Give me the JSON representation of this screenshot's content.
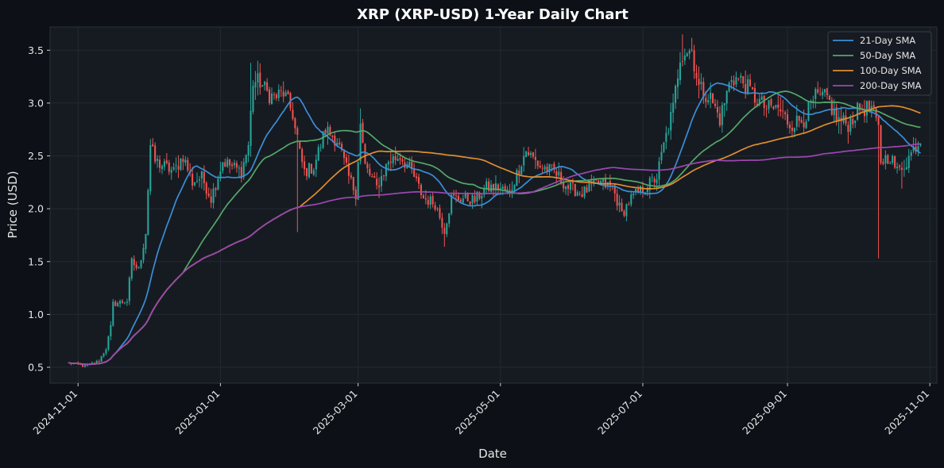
{
  "chart_data": {
    "type": "candlestick",
    "title": "XRP (XRP-USD) 1-Year Daily Chart",
    "xlabel": "Date",
    "ylabel": "Price (USD)",
    "x_range": [
      "2024-10-20",
      "2025-11-04"
    ],
    "ylim": [
      0.35,
      3.72
    ],
    "x_ticks": [
      "2024-11-01",
      "2025-01-01",
      "2025-03-01",
      "2025-05-01",
      "2025-07-01",
      "2025-09-01",
      "2025-11-01"
    ],
    "y_ticks": [
      0.5,
      1.0,
      1.5,
      2.0,
      2.5,
      3.0,
      3.5
    ],
    "grid": true,
    "legend_position": "top-right",
    "colors": {
      "up": "#26a69a",
      "down": "#ef5350",
      "background": "#161b22",
      "page": "#0d1117"
    },
    "price_anchors": [
      [
        "2024-10-28",
        0.54
      ],
      [
        "2024-11-04",
        0.51
      ],
      [
        "2024-11-10",
        0.56
      ],
      [
        "2024-11-13",
        0.68
      ],
      [
        "2024-11-15",
        0.88
      ],
      [
        "2024-11-16",
        1.1
      ],
      [
        "2024-11-22",
        1.13
      ],
      [
        "2024-11-24",
        1.5
      ],
      [
        "2024-11-27",
        1.42
      ],
      [
        "2024-11-30",
        1.78
      ],
      [
        "2024-12-02",
        2.6
      ],
      [
        "2024-12-04",
        2.45
      ],
      [
        "2024-12-08",
        2.4
      ],
      [
        "2024-12-12",
        2.35
      ],
      [
        "2024-12-16",
        2.5
      ],
      [
        "2024-12-20",
        2.25
      ],
      [
        "2024-12-24",
        2.3
      ],
      [
        "2024-12-28",
        2.1
      ],
      [
        "2025-01-02",
        2.45
      ],
      [
        "2025-01-06",
        2.4
      ],
      [
        "2025-01-10",
        2.35
      ],
      [
        "2025-01-13",
        2.6
      ],
      [
        "2025-01-15",
        3.2
      ],
      [
        "2025-01-18",
        3.2
      ],
      [
        "2025-01-21",
        3.1
      ],
      [
        "2025-01-24",
        3.05
      ],
      [
        "2025-01-28",
        3.1
      ],
      [
        "2025-02-01",
        2.9
      ],
      [
        "2025-02-03",
        2.6
      ],
      [
        "2025-02-06",
        2.35
      ],
      [
        "2025-02-10",
        2.4
      ],
      [
        "2025-02-15",
        2.75
      ],
      [
        "2025-02-20",
        2.65
      ],
      [
        "2025-02-25",
        2.3
      ],
      [
        "2025-02-28",
        2.15
      ],
      [
        "2025-03-02",
        2.8
      ],
      [
        "2025-03-04",
        2.4
      ],
      [
        "2025-03-09",
        2.2
      ],
      [
        "2025-03-14",
        2.45
      ],
      [
        "2025-03-19",
        2.5
      ],
      [
        "2025-03-24",
        2.35
      ],
      [
        "2025-03-29",
        2.1
      ],
      [
        "2025-04-03",
        2.05
      ],
      [
        "2025-04-07",
        1.8
      ],
      [
        "2025-04-10",
        2.1
      ],
      [
        "2025-04-15",
        2.1
      ],
      [
        "2025-04-20",
        2.08
      ],
      [
        "2025-04-25",
        2.2
      ],
      [
        "2025-04-30",
        2.2
      ],
      [
        "2025-05-05",
        2.15
      ],
      [
        "2025-05-10",
        2.45
      ],
      [
        "2025-05-12",
        2.55
      ],
      [
        "2025-05-18",
        2.4
      ],
      [
        "2025-05-24",
        2.35
      ],
      [
        "2025-05-30",
        2.2
      ],
      [
        "2025-06-05",
        2.15
      ],
      [
        "2025-06-12",
        2.25
      ],
      [
        "2025-06-18",
        2.2
      ],
      [
        "2025-06-22",
        1.95
      ],
      [
        "2025-06-26",
        2.1
      ],
      [
        "2025-07-02",
        2.2
      ],
      [
        "2025-07-07",
        2.3
      ],
      [
        "2025-07-10",
        2.6
      ],
      [
        "2025-07-14",
        2.95
      ],
      [
        "2025-07-17",
        3.45
      ],
      [
        "2025-07-19",
        3.5
      ],
      [
        "2025-07-22",
        3.5
      ],
      [
        "2025-07-25",
        3.15
      ],
      [
        "2025-07-30",
        3.05
      ],
      [
        "2025-08-03",
        2.85
      ],
      [
        "2025-08-08",
        3.25
      ],
      [
        "2025-08-13",
        3.2
      ],
      [
        "2025-08-18",
        3.05
      ],
      [
        "2025-08-23",
        2.95
      ],
      [
        "2025-08-28",
        2.95
      ],
      [
        "2025-09-02",
        2.8
      ],
      [
        "2025-09-08",
        2.85
      ],
      [
        "2025-09-13",
        3.05
      ],
      [
        "2025-09-18",
        3.05
      ],
      [
        "2025-09-22",
        2.85
      ],
      [
        "2025-09-27",
        2.8
      ],
      [
        "2025-10-02",
        2.95
      ],
      [
        "2025-10-07",
        2.95
      ],
      [
        "2025-10-10",
        2.75
      ],
      [
        "2025-10-11",
        2.45
      ],
      [
        "2025-10-15",
        2.5
      ],
      [
        "2025-10-18",
        2.35
      ],
      [
        "2025-10-22",
        2.45
      ],
      [
        "2025-10-26",
        2.6
      ],
      [
        "2025-10-28",
        2.65
      ]
    ],
    "events": [
      {
        "date": "2025-01-14",
        "high": 3.38
      },
      {
        "date": "2025-02-03",
        "low": 1.78,
        "close": 2.7
      },
      {
        "date": "2025-03-02",
        "high": 2.95
      },
      {
        "date": "2025-04-07",
        "low": 1.64
      },
      {
        "date": "2025-07-18",
        "high": 3.65
      },
      {
        "date": "2025-10-10",
        "low": 1.53
      },
      {
        "date": "2025-10-20",
        "low": 2.19
      }
    ],
    "series": [
      {
        "name": "21-Day SMA",
        "color": "#3b8ed6",
        "window": 21
      },
      {
        "name": "50-Day SMA",
        "color": "#55a868",
        "window": 50
      },
      {
        "name": "100-Day SMA",
        "color": "#e08e2e",
        "window": 100
      },
      {
        "name": "200-Day SMA",
        "color": "#9b48b0",
        "window": 200
      }
    ]
  }
}
